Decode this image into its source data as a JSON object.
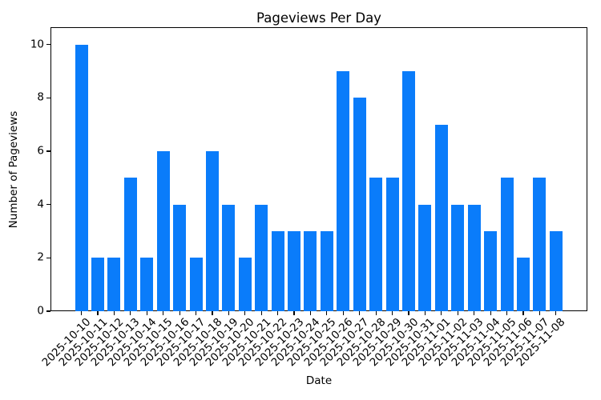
{
  "chart_data": {
    "type": "bar",
    "title": "Pageviews Per Day",
    "xlabel": "Date",
    "ylabel": "Number of Pageviews",
    "categories": [
      "2025-10-10",
      "2025-10-11",
      "2025-10-12",
      "2025-10-13",
      "2025-10-14",
      "2025-10-15",
      "2025-10-16",
      "2025-10-17",
      "2025-10-18",
      "2025-10-19",
      "2025-10-20",
      "2025-10-21",
      "2025-10-22",
      "2025-10-23",
      "2025-10-24",
      "2025-10-25",
      "2025-10-26",
      "2025-10-27",
      "2025-10-28",
      "2025-10-29",
      "2025-10-30",
      "2025-10-31",
      "2025-11-01",
      "2025-11-02",
      "2025-11-03",
      "2025-11-04",
      "2025-11-05",
      "2025-11-06",
      "2025-11-07",
      "2025-11-08"
    ],
    "values": [
      10,
      2,
      2,
      5,
      2,
      6,
      4,
      2,
      6,
      4,
      2,
      4,
      3,
      3,
      3,
      3,
      9,
      8,
      5,
      5,
      9,
      4,
      7,
      4,
      4,
      3,
      5,
      2,
      5,
      3
    ],
    "yticks": [
      0,
      2,
      4,
      6,
      8,
      10
    ],
    "ylim": [
      0,
      10.65
    ],
    "x_tick_rotation": 45,
    "grid": false,
    "legend": "none",
    "bar_color": "#0a7cfa",
    "axis_color": "#000000",
    "text_color": "#000000",
    "background": "#ffffff"
  }
}
